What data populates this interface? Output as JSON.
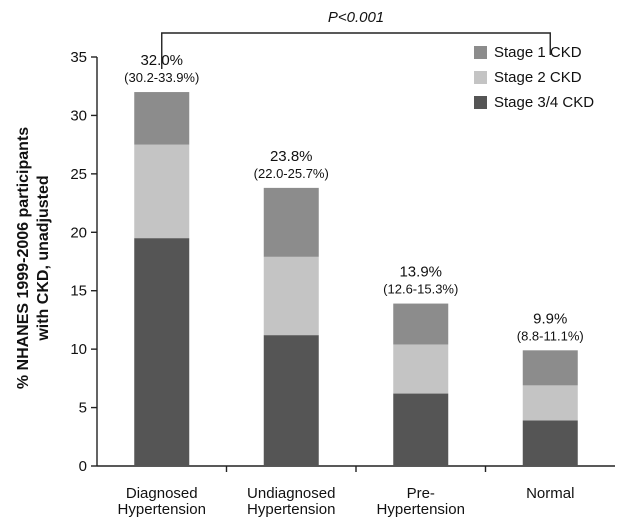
{
  "chart_data": {
    "type": "bar",
    "stacked": true,
    "categories": [
      [
        "Diagnosed",
        "Hypertension"
      ],
      [
        "Undiagnosed",
        "Hypertension"
      ],
      [
        "Pre-",
        "Hypertension"
      ],
      [
        "Normal"
      ]
    ],
    "series": [
      {
        "name": "Stage 3/4 CKD",
        "color": "#555555",
        "values": [
          19.5,
          11.2,
          6.2,
          3.9
        ]
      },
      {
        "name": "Stage 2 CKD",
        "color": "#c4c4c4",
        "values": [
          8.0,
          6.7,
          4.2,
          3.0
        ]
      },
      {
        "name": "Stage 1 CKD",
        "color": "#8c8c8c",
        "values": [
          4.5,
          5.9,
          3.5,
          3.0
        ]
      }
    ],
    "legend_order": [
      "Stage 1 CKD",
      "Stage 2 CKD",
      "Stage 3/4 CKD"
    ],
    "legend_position": "top-right",
    "totals": [
      "32.0%",
      "23.8%",
      "13.9%",
      "9.9%"
    ],
    "confidence_intervals": [
      "(30.2-33.9%)",
      "(22.0-25.7%)",
      "(12.6-15.3%)",
      "(8.8-11.1%)"
    ],
    "significance": {
      "label": "P<0.001",
      "from_category": 0,
      "to_category": 3
    },
    "ylabel_lines": [
      "% NHANES 1999-2006 participants",
      "with CKD, unadjusted"
    ],
    "xlabel": "",
    "ylim": [
      0,
      35
    ],
    "yticks": [
      0,
      5,
      10,
      15,
      20,
      25,
      30,
      35
    ],
    "grid": false
  }
}
